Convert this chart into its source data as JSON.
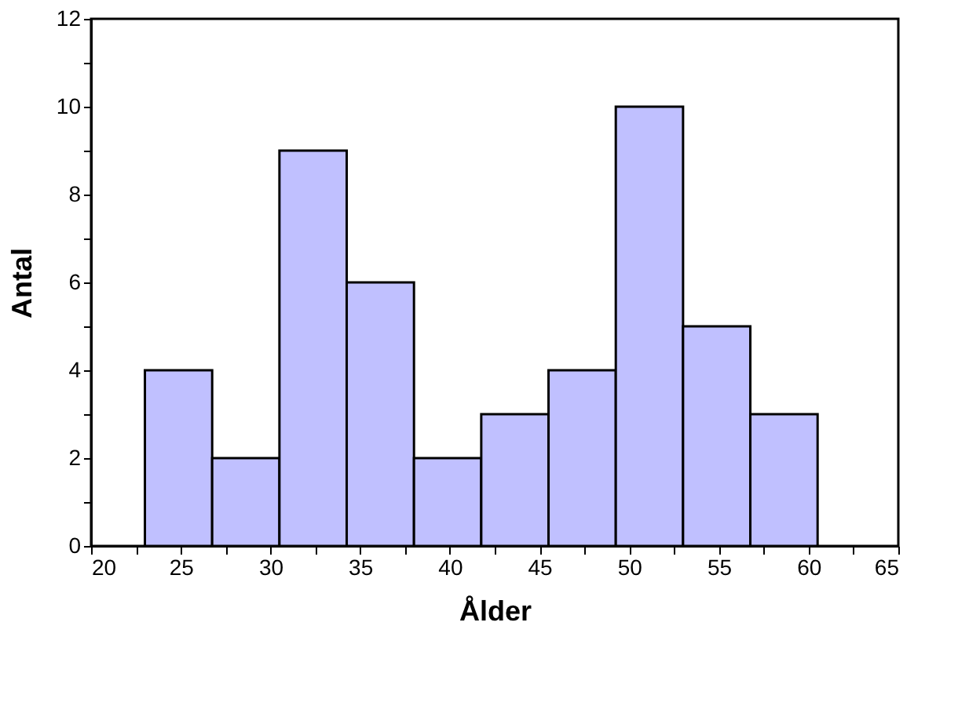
{
  "chart_data": {
    "type": "histogram",
    "xlabel": "Ålder",
    "ylabel": "Antal",
    "bins": [
      23,
      26.75,
      30.5,
      34.25,
      38,
      41.75,
      45.5,
      49.25,
      53,
      56.75,
      60.5
    ],
    "values": [
      4,
      2,
      9,
      6,
      2,
      3,
      4,
      10,
      5,
      3
    ],
    "color": "#c0c0ff",
    "xlim": [
      20,
      65
    ],
    "xticks": [
      20,
      {
        "value": 22.5,
        "label": null
      },
      25,
      {
        "value": 27.5,
        "label": null
      },
      30,
      {
        "value": 32.5,
        "label": null
      },
      35,
      {
        "value": 37.5,
        "label": null
      },
      40,
      {
        "value": 42.5,
        "label": null
      },
      45,
      {
        "value": 47.5,
        "label": null
      },
      50,
      {
        "value": 52.5,
        "label": null
      },
      55,
      {
        "value": 57.5,
        "label": null
      },
      60,
      {
        "value": 62.5,
        "label": null
      },
      65
    ],
    "ylim": [
      0,
      12
    ],
    "yticks": [
      0,
      {
        "value": 1,
        "label": null
      },
      2,
      {
        "value": 3,
        "label": null
      },
      4,
      {
        "value": 5,
        "label": null
      },
      6,
      {
        "value": 7,
        "label": null
      },
      8,
      {
        "value": 9,
        "label": null
      },
      10,
      {
        "value": 11,
        "label": null
      },
      12
    ],
    "grid": false
  }
}
